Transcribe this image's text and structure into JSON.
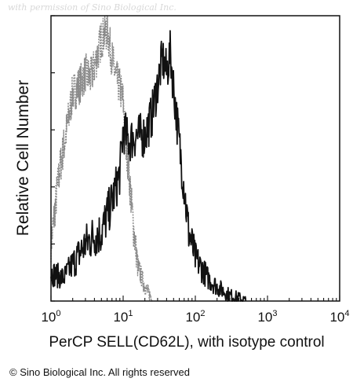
{
  "watermark": "with permission of Sino Biological Inc.",
  "copyright": "© Sino Biological Inc. All rights reserved",
  "chart_data": {
    "type": "histogram_overlay",
    "xlabel": "PerCP SELL(CD62L), with isotype control",
    "ylabel": "Relative Cell Number",
    "xscale": "log",
    "xlim": [
      1,
      10000
    ],
    "x_ticks": [
      {
        "base": "10",
        "exp": "0",
        "value": 1
      },
      {
        "base": "10",
        "exp": "1",
        "value": 10
      },
      {
        "base": "10",
        "exp": "2",
        "value": 100
      },
      {
        "base": "10",
        "exp": "3",
        "value": 1000
      },
      {
        "base": "10",
        "exp": "4",
        "value": 10000
      }
    ],
    "ylim": [
      0,
      100
    ],
    "y_ticks": [
      0,
      20,
      40,
      60,
      80,
      100
    ],
    "series": [
      {
        "role": "isotype control",
        "color": "#8a8a8a",
        "x": [
          1,
          1.3,
          1.6,
          2,
          2.5,
          3,
          3.5,
          4,
          5,
          6,
          7,
          8,
          9,
          10,
          11,
          12,
          14,
          16,
          20,
          25
        ],
        "y": [
          20,
          45,
          58,
          73,
          76,
          80,
          78,
          82,
          92,
          95,
          85,
          78,
          75,
          70,
          55,
          45,
          25,
          12,
          5,
          1
        ]
      },
      {
        "role": "SELL (CD62L) stained",
        "color": "#111111",
        "x": [
          1,
          1.5,
          2,
          3,
          4,
          5,
          6,
          7,
          8,
          9,
          10,
          12,
          15,
          20,
          25,
          30,
          35,
          40,
          45,
          50,
          60,
          70,
          80,
          100,
          150,
          200,
          300,
          400,
          500
        ],
        "y": [
          10,
          8,
          13,
          20,
          23,
          24,
          30,
          35,
          40,
          45,
          60,
          56,
          58,
          58,
          65,
          76,
          85,
          80,
          87,
          75,
          55,
          40,
          25,
          15,
          8,
          5,
          2,
          1,
          0
        ]
      }
    ]
  }
}
